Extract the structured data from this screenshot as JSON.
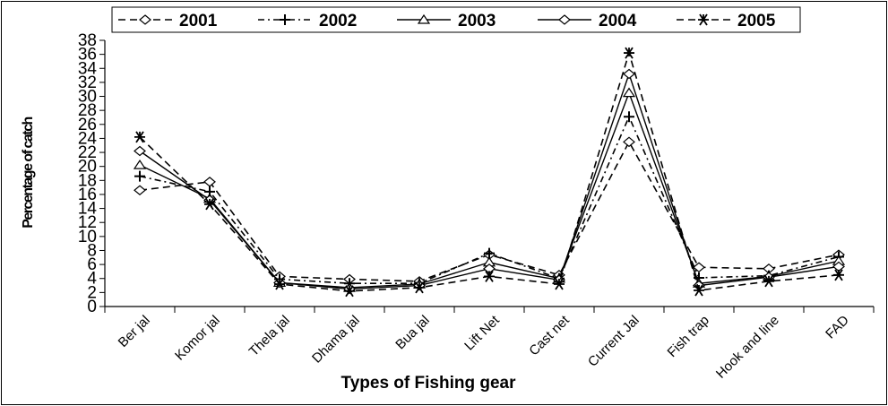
{
  "chart_data": {
    "type": "line",
    "xlabel": "Types of Fishing gear",
    "ylabel": "Percentage of catch",
    "ylim": [
      0,
      38
    ],
    "yticks": [
      0,
      2,
      4,
      6,
      8,
      10,
      12,
      14,
      16,
      18,
      20,
      22,
      24,
      26,
      28,
      30,
      32,
      34,
      36,
      38
    ],
    "grid": false,
    "legend_position": "top",
    "categories": [
      "Ber jal",
      "Komor jal",
      "Thela jal",
      "Dhama jal",
      "Bua jal",
      "Lift Net",
      "Cast net",
      "Current Jal",
      "Fish trap",
      "Hook and line",
      "FAD"
    ],
    "series": [
      {
        "name": "2001",
        "line": "dashed",
        "marker": "diamond",
        "values": [
          16.6,
          17.8,
          4.3,
          3.9,
          3.6,
          7.4,
          4.5,
          23.5,
          5.6,
          5.4,
          7.4
        ]
      },
      {
        "name": "2002",
        "line": "dash-dot",
        "marker": "plus",
        "values": [
          18.6,
          16.4,
          3.9,
          3.3,
          3.3,
          7.6,
          4.0,
          27.1,
          4.1,
          4.4,
          7.1
        ]
      },
      {
        "name": "2003",
        "line": "solid",
        "marker": "triangle",
        "values": [
          20.2,
          15.4,
          3.4,
          2.7,
          3.2,
          6.3,
          4.0,
          30.5,
          3.3,
          4.3,
          6.5
        ]
      },
      {
        "name": "2004",
        "line": "solid",
        "marker": "diamond",
        "values": [
          22.2,
          15.2,
          3.4,
          2.5,
          3.0,
          5.4,
          3.8,
          33.2,
          3.0,
          4.2,
          5.7
        ]
      },
      {
        "name": "2005",
        "line": "dashed",
        "marker": "asterisk",
        "values": [
          24.2,
          14.6,
          3.2,
          2.2,
          2.7,
          4.3,
          3.2,
          36.2,
          2.3,
          3.6,
          4.5
        ]
      }
    ]
  }
}
